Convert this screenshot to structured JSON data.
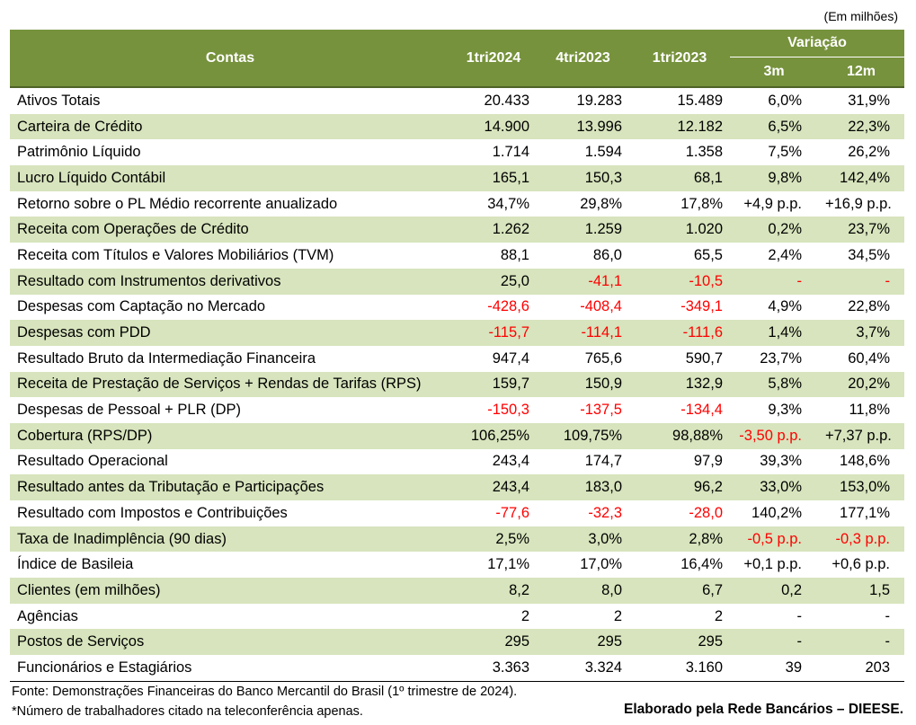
{
  "unit_note": "(Em milhões)",
  "header": {
    "contas": "Contas",
    "p1": "1tri2024",
    "p2": "4tri2023",
    "p3": "1tri2023",
    "variacao": "Variação",
    "v3m": "3m",
    "v12m": "12m"
  },
  "rows": [
    {
      "label": "Ativos Totais",
      "p1": "20.433",
      "p2": "19.283",
      "p3": "15.489",
      "v3": "6,0%",
      "v12": "31,9%",
      "neg": []
    },
    {
      "label": "Carteira de Crédito",
      "p1": "14.900",
      "p2": "13.996",
      "p3": "12.182",
      "v3": "6,5%",
      "v12": "22,3%",
      "neg": []
    },
    {
      "label": "Patrimônio Líquido",
      "p1": "1.714",
      "p2": "1.594",
      "p3": "1.358",
      "v3": "7,5%",
      "v12": "26,2%",
      "neg": []
    },
    {
      "label": "Lucro Líquido Contábil",
      "p1": "165,1",
      "p2": "150,3",
      "p3": "68,1",
      "v3": "9,8%",
      "v12": "142,4%",
      "neg": []
    },
    {
      "label": "Retorno sobre o PL Médio recorrente anualizado",
      "p1": "34,7%",
      "p2": "29,8%",
      "p3": "17,8%",
      "v3": "+4,9 p.p.",
      "v12": "+16,9 p.p.",
      "neg": []
    },
    {
      "label": "Receita com Operações de Crédito",
      "p1": "1.262",
      "p2": "1.259",
      "p3": "1.020",
      "v3": "0,2%",
      "v12": "23,7%",
      "neg": []
    },
    {
      "label": "Receita com Títulos e Valores Mobiliários (TVM)",
      "p1": "88,1",
      "p2": "86,0",
      "p3": "65,5",
      "v3": "2,4%",
      "v12": "34,5%",
      "neg": []
    },
    {
      "label": "Resultado com Instrumentos derivativos",
      "p1": "25,0",
      "p2": "-41,1",
      "p3": "-10,5",
      "v3": "-",
      "v12": "-",
      "neg": [
        "p2",
        "p3",
        "v3",
        "v12"
      ]
    },
    {
      "label": "Despesas com Captação no Mercado",
      "p1": "-428,6",
      "p2": "-408,4",
      "p3": "-349,1",
      "v3": "4,9%",
      "v12": "22,8%",
      "neg": [
        "p1",
        "p2",
        "p3"
      ]
    },
    {
      "label": "Despesas com PDD",
      "p1": "-115,7",
      "p2": "-114,1",
      "p3": "-111,6",
      "v3": "1,4%",
      "v12": "3,7%",
      "neg": [
        "p1",
        "p2",
        "p3"
      ]
    },
    {
      "label": "Resultado Bruto da Intermediação Financeira",
      "p1": "947,4",
      "p2": "765,6",
      "p3": "590,7",
      "v3": "23,7%",
      "v12": "60,4%",
      "neg": []
    },
    {
      "label": "Receita de Prestação de Serviços + Rendas de Tarifas (RPS)",
      "p1": "159,7",
      "p2": "150,9",
      "p3": "132,9",
      "v3": "5,8%",
      "v12": "20,2%",
      "neg": []
    },
    {
      "label": "Despesas de Pessoal + PLR (DP)",
      "p1": "-150,3",
      "p2": "-137,5",
      "p3": "-134,4",
      "v3": "9,3%",
      "v12": "11,8%",
      "neg": [
        "p1",
        "p2",
        "p3"
      ]
    },
    {
      "label": "Cobertura (RPS/DP)",
      "p1": "106,25%",
      "p2": "109,75%",
      "p3": "98,88%",
      "v3": "-3,50 p.p.",
      "v12": "+7,37 p.p.",
      "neg": [
        "v3"
      ]
    },
    {
      "label": "Resultado Operacional",
      "p1": "243,4",
      "p2": "174,7",
      "p3": "97,9",
      "v3": "39,3%",
      "v12": "148,6%",
      "neg": []
    },
    {
      "label": "Resultado antes da Tributação e Participações",
      "p1": "243,4",
      "p2": "183,0",
      "p3": "96,2",
      "v3": "33,0%",
      "v12": "153,0%",
      "neg": []
    },
    {
      "label": "Resultado com Impostos e Contribuições",
      "p1": "-77,6",
      "p2": "-32,3",
      "p3": "-28,0",
      "v3": "140,2%",
      "v12": "177,1%",
      "neg": [
        "p1",
        "p2",
        "p3"
      ]
    },
    {
      "label": "Taxa de Inadimplência (90 dias)",
      "p1": "2,5%",
      "p2": "3,0%",
      "p3": "2,8%",
      "v3": "-0,5 p.p.",
      "v12": "-0,3 p.p.",
      "neg": [
        "v3",
        "v12"
      ]
    },
    {
      "label": "Índice de Basileia",
      "p1": "17,1%",
      "p2": "17,0%",
      "p3": "16,4%",
      "v3": "+0,1 p.p.",
      "v12": "+0,6 p.p.",
      "neg": []
    },
    {
      "label": "Clientes (em milhões)",
      "p1": "8,2",
      "p2": "8,0",
      "p3": "6,7",
      "v3": "0,2",
      "v12": "1,5",
      "neg": []
    },
    {
      "label": "Agências",
      "p1": "2",
      "p2": "2",
      "p3": "2",
      "v3": "-",
      "v12": "-",
      "neg": []
    },
    {
      "label": "Postos de Serviços",
      "p1": "295",
      "p2": "295",
      "p3": "295",
      "v3": "-",
      "v12": "-",
      "neg": []
    },
    {
      "label": "Funcionários e Estagiários",
      "p1": "3.363",
      "p2": "3.324",
      "p3": "3.160",
      "v3": "39",
      "v12": "203",
      "neg": []
    }
  ],
  "footer": {
    "source": "Fonte: Demonstrações Financeiras do Banco Mercantil do Brasil (1º trimestre de 2024).",
    "note": "*Número de trabalhadores citado na teleconferência apenas.",
    "credit": "Elaborado pela Rede Bancários – DIEESE."
  },
  "colors": {
    "header_bg": "#76923c",
    "band_bg": "#d7e4bd",
    "negative": "#ff0000"
  }
}
